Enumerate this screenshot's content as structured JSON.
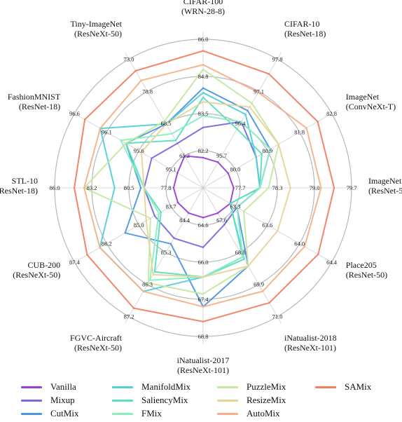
{
  "chart_data": {
    "type": "radar",
    "axes": [
      {
        "name": "CIFAR-100",
        "model": "(WRN-28-8)",
        "ticks": [
          "82.2",
          "83.5",
          "84.8",
          "86.0"
        ],
        "min": 80.9,
        "max": 87.3
      },
      {
        "name": "CIFAR-10",
        "model": "(ResNet-18)",
        "ticks": [
          "95.7",
          "96.4",
          "97.1",
          "97.8"
        ],
        "min": 95.0,
        "max": 98.5
      },
      {
        "name": "ImageNet",
        "model": "(ConvNeXt-T)",
        "ticks": [
          "80.0",
          "80.9",
          "81.8",
          "82.8"
        ],
        "min": 79.1,
        "max": 83.7
      },
      {
        "name": "ImageNet",
        "model": "(ResNet-50)",
        "ticks": [
          "77.7",
          "78.3",
          "79.0",
          "79.7"
        ],
        "min": 77.0,
        "max": 80.4
      },
      {
        "name": "Place205",
        "model": "(ResNet-50)",
        "ticks": [
          "63.3",
          "63.6",
          "64.0",
          "64.4"
        ],
        "min": 62.9,
        "max": 64.8
      },
      {
        "name": "iNatualist-2018",
        "model": "(ResNeXt-101)",
        "ticks": [
          "67.6",
          "68.8",
          "69.9",
          "71.0"
        ],
        "min": 66.5,
        "max": 72.1
      },
      {
        "name": "iNatualist-2017",
        "model": "(ResNeXt-101)",
        "ticks": [
          "64.6",
          "66.0",
          "67.4",
          "68.8"
        ],
        "min": 63.2,
        "max": 70.2
      },
      {
        "name": "FGVC-Aircraft",
        "model": "(ResNeXt-50)",
        "ticks": [
          "84.4",
          "85.3",
          "86.3",
          "87.2"
        ],
        "min": 83.5,
        "max": 88.1
      },
      {
        "name": "CUB-200",
        "model": "(ResNeXt-50)",
        "ticks": [
          "83.7",
          "85.0",
          "86.2",
          "87.4"
        ],
        "min": 82.5,
        "max": 88.6
      },
      {
        "name": "STL-10",
        "model": "(ResNet-18)",
        "ticks": [
          "77.8",
          "80.5",
          "83.2",
          "86.0"
        ],
        "min": 75.1,
        "max": 88.7
      },
      {
        "name": "FashionMNIST",
        "model": "(ResNet-18)",
        "ticks": [
          "95.1",
          "95.6",
          "96.1",
          "96.6"
        ],
        "min": 94.6,
        "max": 97.1
      },
      {
        "name": "Tiny-ImageNet",
        "model": "(ResNeXt-50)",
        "ticks": [
          "65.2",
          "68.5",
          "70.8",
          "73.0"
        ],
        "min": 61.9,
        "max": 75.2
      }
    ],
    "series": [
      {
        "name": "Vanilla",
        "color": "#9b3fd6",
        "values": [
          82.2,
          95.7,
          80.0,
          77.7,
          63.3,
          67.6,
          64.6,
          84.4,
          83.7,
          77.8,
          95.1,
          65.2
        ]
      },
      {
        "name": "Mixup",
        "color": "#7a6ae0",
        "values": [
          83.5,
          96.8,
          81.0,
          78.3,
          63.4,
          68.1,
          66.0,
          85.3,
          84.8,
          80.5,
          95.6,
          66.5
        ]
      },
      {
        "name": "CutMix",
        "color": "#4d97e0",
        "values": [
          85.2,
          97.1,
          81.5,
          78.3,
          63.4,
          69.9,
          68.8,
          85.5,
          86.2,
          80.8,
          96.1,
          68.5
        ]
      },
      {
        "name": "ManifoldMix",
        "color": "#52cfdb",
        "values": [
          85.0,
          97.0,
          81.0,
          78.3,
          63.3,
          69.5,
          67.4,
          87.2,
          87.4,
          83.2,
          96.6,
          68.5
        ]
      },
      {
        "name": "SaliencyMix",
        "color": "#58dfbf",
        "values": [
          84.8,
          96.6,
          81.2,
          78.3,
          63.3,
          69.6,
          67.4,
          86.5,
          84.5,
          80.5,
          96.1,
          66.8
        ]
      },
      {
        "name": "FMix",
        "color": "#8aefc0",
        "values": [
          84.0,
          96.8,
          81.5,
          78.3,
          63.4,
          69.5,
          67.4,
          86.8,
          84.6,
          80.5,
          96.2,
          67.5
        ]
      },
      {
        "name": "PuzzleMix",
        "color": "#c4e8a0",
        "values": [
          86.0,
          97.3,
          81.8,
          78.5,
          63.5,
          69.9,
          68.2,
          86.9,
          85.0,
          86.0,
          96.1,
          68.8
        ]
      },
      {
        "name": "ResizeMix",
        "color": "#e8d49a",
        "values": [
          84.6,
          97.2,
          81.8,
          79.0,
          64.0,
          69.9,
          67.4,
          86.6,
          85.2,
          80.5,
          95.8,
          68.5
        ]
      },
      {
        "name": "AutoMix",
        "color": "#f7b088",
        "values": [
          86.2,
          97.6,
          82.8,
          79.7,
          64.4,
          71.0,
          68.8,
          87.2,
          87.4,
          86.0,
          96.6,
          73.0
        ]
      },
      {
        "name": "SAMix",
        "color": "#f08060",
        "values": [
          86.8,
          98.1,
          83.2,
          80.0,
          64.6,
          71.5,
          69.5,
          87.8,
          88.0,
          86.9,
          96.9,
          74.0
        ]
      }
    ],
    "grid": true,
    "grid_rings": 4,
    "legend": "bottom"
  }
}
